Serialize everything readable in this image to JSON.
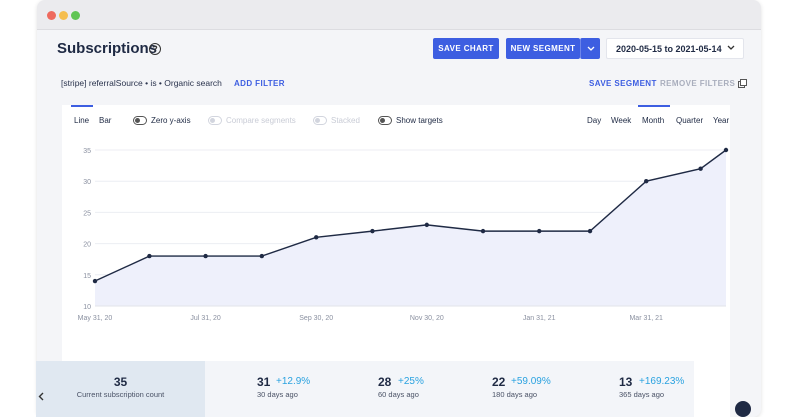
{
  "header": {
    "title": "Subscriptions",
    "save_chart": "SAVE CHART",
    "new_segment": "NEW SEGMENT",
    "date_range": "2020-05-15 to 2021-05-14"
  },
  "filters": {
    "active_filter": "[stripe] referralSource • is • Organic search",
    "add_filter": "ADD FILTER",
    "save_segment": "SAVE SEGMENT",
    "remove_filters": "REMOVE FILTERS"
  },
  "controls": {
    "chart_types": [
      "Line",
      "Bar"
    ],
    "selected_chart_type": "Line",
    "toggles": [
      {
        "label": "Zero y-axis",
        "enabled": true
      },
      {
        "label": "Compare segments",
        "enabled": false
      },
      {
        "label": "Stacked",
        "enabled": false
      },
      {
        "label": "Show targets",
        "enabled": true
      }
    ],
    "periods": [
      "Day",
      "Week",
      "Month",
      "Quarter",
      "Year"
    ],
    "selected_period": "Month"
  },
  "chart_data": {
    "type": "area",
    "x": [
      "2020-05-31",
      "2020-06-30",
      "2020-07-31",
      "2020-08-31",
      "2020-09-30",
      "2020-10-31",
      "2020-11-30",
      "2020-12-31",
      "2021-01-31",
      "2021-02-28",
      "2021-03-31",
      "2021-04-30",
      "2021-05-14"
    ],
    "values": [
      14,
      18,
      18,
      18,
      21,
      22,
      23,
      22,
      22,
      22,
      30,
      32,
      35
    ],
    "x_tick_labels": [
      "May 31, 20",
      "Jul 31, 20",
      "Sep 30, 20",
      "Nov 30, 20",
      "Jan 31, 21",
      "Mar 31, 21"
    ],
    "y_tick_labels": [
      "10",
      "15",
      "20",
      "25",
      "30",
      "35"
    ],
    "ylim": [
      10,
      35
    ],
    "grid": true,
    "line_color": "#1f2a44",
    "fill_color": "#eef0fb"
  },
  "stats": {
    "current": {
      "value": "35",
      "label": "Current subscription count"
    },
    "items": [
      {
        "value": "31",
        "delta": "+12.9%",
        "label": "30 days ago"
      },
      {
        "value": "28",
        "delta": "+25%",
        "label": "60 days ago"
      },
      {
        "value": "22",
        "delta": "+59.09%",
        "label": "180 days ago"
      },
      {
        "value": "13",
        "delta": "+169.23%",
        "label": "365 days ago"
      }
    ]
  },
  "colors": {
    "accent": "#3d5ee1",
    "positive": "#2aa2e0"
  }
}
